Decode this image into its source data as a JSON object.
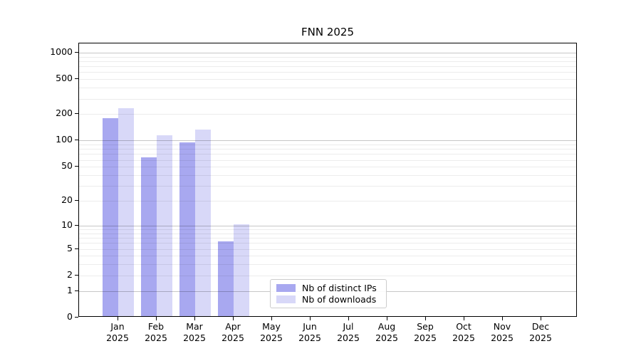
{
  "chart_data": {
    "type": "bar",
    "title": "FNN 2025",
    "year_label": "2025",
    "categories": [
      "Jan",
      "Feb",
      "Mar",
      "Apr",
      "May",
      "Jun",
      "Jul",
      "Aug",
      "Sep",
      "Oct",
      "Nov",
      "Dec"
    ],
    "series": [
      {
        "name": "Nb of distinct IPs",
        "color": "#a8a8f0",
        "values": [
          175,
          62,
          92,
          6,
          0,
          0,
          0,
          0,
          0,
          0,
          0,
          0
        ]
      },
      {
        "name": "Nb of downloads",
        "color": "#d8d8f8",
        "values": [
          225,
          110,
          128,
          10,
          0,
          0,
          0,
          0,
          0,
          0,
          0,
          0
        ]
      }
    ],
    "ylabel": "",
    "xlabel": "",
    "yscale": "log10(1+y)",
    "ylim": [
      0,
      1270
    ],
    "yticks": [
      0,
      1,
      2,
      5,
      10,
      20,
      50,
      100,
      200,
      500,
      1000
    ],
    "grid": "horizontal major and log-minor lines",
    "legend_position": "lower center-left inside plot",
    "colors": {
      "frame": "#000000",
      "grid_major": "#c7c7c7",
      "grid_minor": "#ececec",
      "background": "#ffffff"
    }
  }
}
